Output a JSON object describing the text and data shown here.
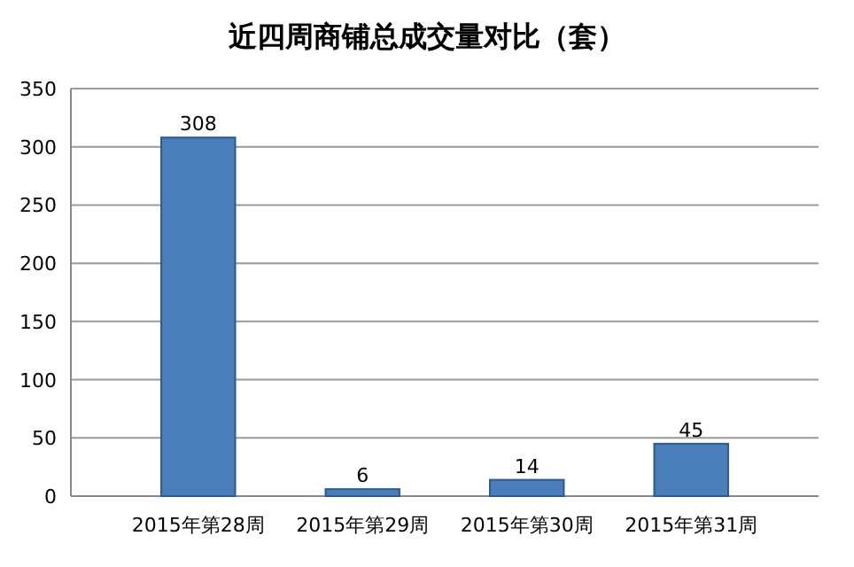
{
  "chart_data": {
    "type": "bar",
    "title": "近四周商铺总成交量对比（套）",
    "categories": [
      "2015年第28周",
      "2015年第29周",
      "2015年第30周",
      "2015年第31周"
    ],
    "values": [
      308,
      6,
      14,
      45
    ],
    "color": "#4a7ebb",
    "ylim": [
      0,
      350
    ],
    "yticks": [
      0,
      50,
      100,
      150,
      200,
      250,
      300,
      350
    ],
    "grid": "y",
    "data_labels": true
  }
}
